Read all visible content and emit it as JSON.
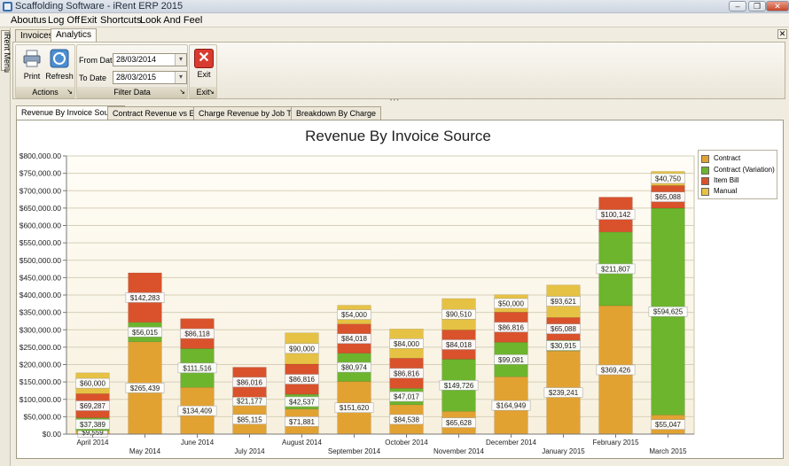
{
  "window": {
    "title": "Scaffolding Software - iRent ERP 2015",
    "min_label": "–",
    "max_label": "❐",
    "close_label": "✕"
  },
  "menu": [
    "Aboutus",
    "Log Off",
    "Exit",
    "Shortcuts",
    "Look And Feel"
  ],
  "side_tab": "iRent Menu",
  "doc_tabs": [
    "Invoices",
    "Analytics"
  ],
  "doc_active": 1,
  "doc_close": "✕",
  "ribbon": {
    "print": "Print",
    "refresh": "Refresh",
    "actions_group": "Actions",
    "from_label": "From Date",
    "from_value": "28/03/2014",
    "to_label": "To Date",
    "to_value": "28/03/2015",
    "filter_group": "Filter Data",
    "exit": "Exit",
    "exit_group": "Exit",
    "exit_icon": "✕",
    "launcher": "↘"
  },
  "content_tabs": [
    "Revenue By Invoice Source",
    "Contract Revenue vs ETC",
    "Charge Revenue by Job Type",
    "Breakdown By Charge"
  ],
  "content_active": 0,
  "colors": {
    "Contract": "#e2a232",
    "Contract (Variation)": "#6cb52c",
    "Item Bill": "#d9522c",
    "Manual": "#e6c244"
  },
  "chart_data": {
    "type": "bar",
    "stacked": true,
    "title": "Revenue By Invoice Source",
    "xlabel": "",
    "ylabel": "",
    "ylim": [
      0,
      800000
    ],
    "ytick_step": 50000,
    "y_ticks": [
      "$0.00",
      "$50,000.00",
      "$100,000.00",
      "$150,000.00",
      "$200,000.00",
      "$250,000.00",
      "$300,000.00",
      "$350,000.00",
      "$400,000.00",
      "$450,000.00",
      "$500,000.00",
      "$550,000.00",
      "$600,000.00",
      "$650,000.00",
      "$700,000.00",
      "$750,000.00",
      "$800,000.00"
    ],
    "grid": true,
    "legend": "right",
    "categories": [
      "April 2014",
      "May 2014",
      "June 2014",
      "July 2014",
      "August 2014",
      "September 2014",
      "October 2014",
      "November 2014",
      "December 2014",
      "January 2015",
      "February 2015",
      "March 2015"
    ],
    "series": [
      {
        "name": "Contract",
        "values": [
          9559,
          265439,
          134409,
          85115,
          71881,
          151620,
          84538,
          65628,
          164949,
          239241,
          369426,
          55047
        ],
        "labels": [
          "$9,559",
          "$265,439",
          "$134,409",
          "$85,115",
          "$71,881",
          "$151,620",
          "$84,538",
          "$65,628",
          "$164,949",
          "$239,241",
          "$369,426",
          "$55,047"
        ]
      },
      {
        "name": "Contract (Variation)",
        "values": [
          37389,
          56015,
          111516,
          21177,
          42537,
          80974,
          47017,
          149726,
          99081,
          30915,
          211807,
          594625
        ],
        "labels": [
          "$37,389",
          "$56,015",
          "$111,516",
          "$21,177",
          "$42,537",
          "$80,974",
          "$47,017",
          "$149,726",
          "$99,081",
          "$30,915",
          "$211,807",
          "$594,625"
        ]
      },
      {
        "name": "Item Bill",
        "values": [
          69287,
          142283,
          86118,
          86016,
          86816,
          84018,
          86816,
          84018,
          86816,
          65088,
          100142,
          65088
        ],
        "labels": [
          "$69,287",
          "$142,283",
          "$86,118",
          "$86,016",
          "$86,816",
          "$84,018",
          "$86,816",
          "$84,018",
          "$86,816",
          "$65,088",
          "$100,142",
          "$65,088"
        ]
      },
      {
        "name": "Manual",
        "values": [
          60000,
          0,
          0,
          0,
          90000,
          54000,
          84000,
          90510,
          50000,
          93621,
          0,
          40750
        ],
        "labels": [
          "$60,000",
          "",
          "",
          "",
          "$90,000",
          "$54,000",
          "$84,000",
          "$90,510",
          "$50,000",
          "$93,621",
          "",
          "$40,750"
        ]
      }
    ]
  }
}
